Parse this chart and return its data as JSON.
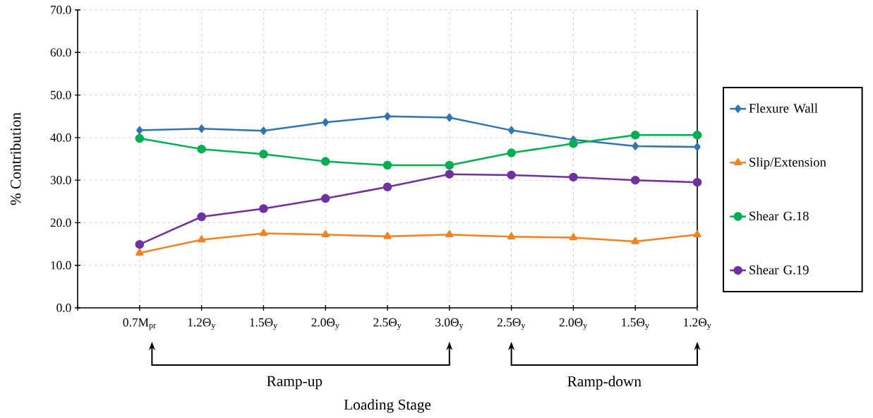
{
  "chart_data": {
    "type": "line",
    "xlabel": "Loading Stage",
    "ylabel": "% Contribution",
    "categories": [
      "0.7M$_{pr}$",
      "1.2Θ$_{y}$",
      "1.5Θ$_{y}$",
      "2.0Θ$_{y}$",
      "2.5Θ$_{y}$",
      "3.0Θ$_{y}$",
      "2.5Θ$_{y}$",
      "2.0Θ$_{y}$",
      "1.5Θ$_{y}$",
      "1.2Θ$_{y}$"
    ],
    "series": [
      {
        "name": "Flexure Wall",
        "color": "#2e75b6",
        "marker": "diamond",
        "values": [
          41.7,
          42.1,
          41.6,
          43.6,
          45.0,
          44.7,
          41.7,
          39.5,
          38.0,
          37.8
        ]
      },
      {
        "name": "Slip/Extension",
        "color": "#f58220",
        "marker": "triangle",
        "values": [
          12.9,
          16.0,
          17.5,
          17.2,
          16.8,
          17.2,
          16.7,
          16.5,
          15.6,
          17.2
        ]
      },
      {
        "name": "Shear G.18",
        "color": "#00b050",
        "marker": "circle",
        "values": [
          39.8,
          37.3,
          36.1,
          34.4,
          33.5,
          33.5,
          36.4,
          38.6,
          40.6,
          40.6
        ]
      },
      {
        "name": "Shear G.19",
        "color": "#7030a0",
        "marker": "circle",
        "values": [
          14.9,
          21.4,
          23.3,
          25.7,
          28.4,
          31.4,
          31.2,
          30.7,
          30.0,
          29.5
        ]
      }
    ],
    "ylim": [
      0,
      70
    ],
    "yticks": [
      {
        "value": 0,
        "label": "0.0"
      },
      {
        "value": 10,
        "label": "10.0"
      },
      {
        "value": 20,
        "label": "20.0"
      },
      {
        "value": 30,
        "label": "30.0"
      },
      {
        "value": 40,
        "label": "40.0"
      },
      {
        "value": 50,
        "label": "50.0"
      },
      {
        "value": 60,
        "label": "60.0"
      },
      {
        "value": 70,
        "label": "70.0"
      }
    ],
    "grid": true,
    "legend": "right",
    "line_style": "solid",
    "annotations": [
      "Ramp-up",
      "Ramp-down"
    ]
  }
}
